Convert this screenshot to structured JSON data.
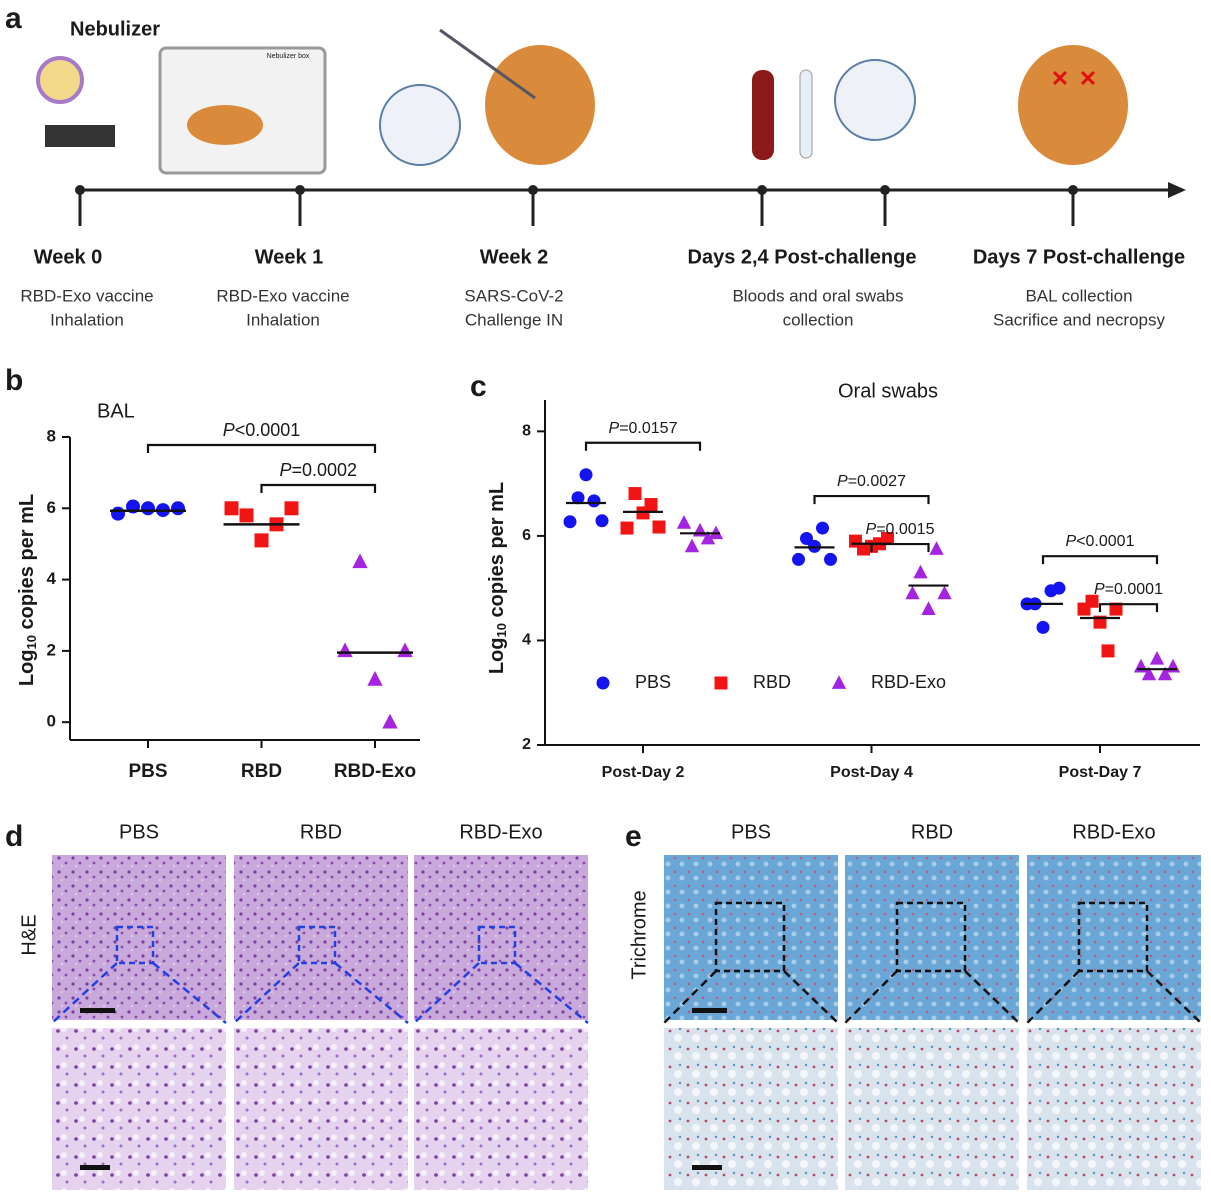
{
  "panel_labels": [
    "a",
    "b",
    "c",
    "d",
    "e"
  ],
  "timeline": {
    "device_label": "Nebulizer",
    "box_label": "Nebulizer box",
    "events": [
      {
        "label": "Week 0",
        "lines": [
          "RBD-Exo vaccine",
          "Inhalation"
        ]
      },
      {
        "label": "Week 1",
        "lines": [
          "RBD-Exo vaccine",
          "Inhalation"
        ]
      },
      {
        "label": "Week 2",
        "lines": [
          "SARS-CoV-2",
          "Challenge IN"
        ]
      },
      {
        "label": "Days 2,4 Post-challenge",
        "lines": [
          "Bloods and oral swabs",
          "collection"
        ]
      },
      {
        "label": "Days 7 Post-challenge",
        "lines": [
          "BAL collection",
          "Sacrifice and necropsy"
        ]
      }
    ]
  },
  "chart_data": [
    {
      "type": "dotplot",
      "title": "BAL",
      "ylabel": [
        "Log",
        "10",
        " copies per mL"
      ],
      "categories": [
        "PBS",
        "RBD",
        "RBD-Exo"
      ],
      "colors": [
        "#1414f0",
        "#f01414",
        "#a424e0"
      ],
      "markers": [
        "circle",
        "square",
        "triangle"
      ],
      "values": [
        [
          5.85,
          6.05,
          6.0,
          5.95,
          6.0
        ],
        [
          6.0,
          5.8,
          5.1,
          5.55,
          6.0
        ],
        [
          2.0,
          4.5,
          1.2,
          0.0,
          2.0
        ]
      ],
      "medians": [
        5.93,
        5.55,
        1.95
      ],
      "ylim": [
        -0.5,
        8
      ],
      "yticks": [
        0,
        2,
        4,
        6,
        8
      ],
      "comparisons": [
        {
          "between": [
            0,
            2
          ],
          "label": "P<0.0001"
        },
        {
          "between": [
            1,
            2
          ],
          "label": "P=0.0002"
        }
      ]
    },
    {
      "type": "grouped_dotplot",
      "title": "Oral swabs",
      "ylabel": [
        "Log",
        "10",
        " copies per mL"
      ],
      "categories": [
        "Post-Day 2",
        "Post-Day 4",
        "Post-Day 7"
      ],
      "series": [
        {
          "name": "PBS",
          "color": "#1414f0",
          "marker": "circle",
          "values": [
            [
              6.27,
              6.73,
              7.17,
              6.67,
              6.29
            ],
            [
              5.55,
              5.95,
              5.8,
              6.15,
              5.55
            ],
            [
              4.7,
              4.7,
              4.25,
              4.95,
              5.0
            ]
          ],
          "medians": [
            6.63,
            5.78,
            4.7
          ]
        },
        {
          "name": "RBD",
          "color": "#f01414",
          "marker": "square",
          "values": [
            [
              6.15,
              6.81,
              6.44,
              6.6,
              6.17
            ],
            [
              5.9,
              5.75,
              5.8,
              5.85,
              5.95
            ],
            [
              4.6,
              4.75,
              4.35,
              3.8,
              4.6
            ]
          ],
          "medians": [
            6.46,
            5.85,
            4.43
          ]
        },
        {
          "name": "RBD-Exo",
          "color": "#a424e0",
          "marker": "triangle",
          "values": [
            [
              6.25,
              5.8,
              6.1,
              5.95,
              6.05
            ],
            [
              4.9,
              5.3,
              4.6,
              5.75,
              4.9
            ],
            [
              3.5,
              3.35,
              3.65,
              3.35,
              3.5
            ]
          ],
          "medians": [
            6.05,
            5.05,
            3.45
          ]
        }
      ],
      "ylim": [
        2,
        8.6
      ],
      "yticks": [
        2,
        4,
        6,
        8
      ],
      "legend": "lower left",
      "comparisons": [
        {
          "category": 0,
          "between": [
            0,
            2
          ],
          "label": "P=0.0157"
        },
        {
          "category": 1,
          "between": [
            0,
            2
          ],
          "label": "P=0.0027"
        },
        {
          "category": 1,
          "between": [
            1,
            2
          ],
          "label": "P=0.0015"
        },
        {
          "category": 2,
          "between": [
            0,
            2
          ],
          "label": "P<0.0001"
        },
        {
          "category": 2,
          "between": [
            1,
            2
          ],
          "label": "P=0.0001"
        }
      ]
    }
  ],
  "histology": {
    "he": {
      "side_label": "H&E",
      "columns": [
        "PBS",
        "RBD",
        "RBD-Exo"
      ]
    },
    "trichrome": {
      "side_label": "Trichrome",
      "columns": [
        "PBS",
        "RBD",
        "RBD-Exo"
      ]
    }
  }
}
